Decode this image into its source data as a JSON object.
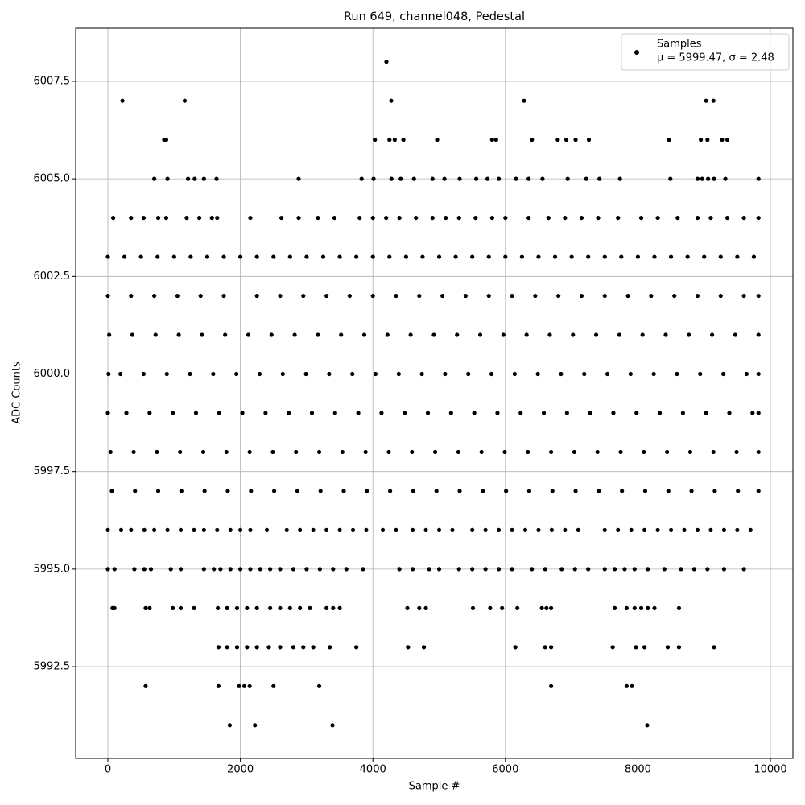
{
  "chart_data": {
    "type": "scatter",
    "title": "Run 649, channel048, Pedestal",
    "x_label": "Sample #",
    "y_label": "ADC Counts",
    "xlim": [
      -486,
      10340
    ],
    "ylim": [
      5990.15,
      6008.86
    ],
    "xticks": [
      0,
      2000,
      4000,
      6000,
      8000,
      10000
    ],
    "yticks": [
      5992.5,
      {
        "value": 5995,
        "label": "5995.0"
      },
      5997.5,
      {
        "value": 6000,
        "label": "6000.0"
      },
      6002.5,
      {
        "value": 6005,
        "label": "6005.0"
      },
      6007.5
    ],
    "grid": true,
    "legend": "upper right",
    "legend_note": "μ = 5999.47, σ = 2.48",
    "x": [
      4204,
      220,
      1160,
      4277,
      6282,
      9030,
      9140,
      850,
      880,
      4030,
      4250,
      4330,
      4460,
      4970,
      5800,
      5860,
      6400,
      6790,
      6920,
      7060,
      7260,
      8470,
      8950,
      9050,
      9270,
      9350,
      700,
      900,
      1210,
      1310,
      1450,
      1640,
      2880,
      3830,
      4010,
      4280,
      4420,
      4620,
      4900,
      5080,
      5310,
      5560,
      5730,
      5900,
      6160,
      6350,
      6560,
      6940,
      7220,
      7420,
      7730,
      8490,
      8900,
      8970,
      9060,
      9150,
      9320,
      9820,
      80,
      350,
      540,
      760,
      880,
      1190,
      1380,
      1570,
      1650,
      2150,
      2620,
      2880,
      3170,
      3420,
      3800,
      4000,
      4200,
      4400,
      4650,
      4900,
      5100,
      5300,
      5550,
      5800,
      6000,
      6350,
      6650,
      6900,
      7150,
      7400,
      7700,
      8050,
      8300,
      8600,
      8900,
      9100,
      9350,
      9600,
      9820,
      0,
      250,
      500,
      750,
      1000,
      1250,
      1500,
      1750,
      2000,
      2250,
      2500,
      2750,
      3000,
      3250,
      3500,
      3750,
      4000,
      4250,
      4500,
      4750,
      5000,
      5250,
      5500,
      5750,
      6000,
      6250,
      6500,
      6750,
      7000,
      7250,
      7500,
      7750,
      8000,
      8250,
      8500,
      8750,
      9000,
      9250,
      9500,
      9750,
      0,
      350,
      700,
      1050,
      1400,
      1750,
      2250,
      2600,
      2950,
      3300,
      3650,
      4000,
      4350,
      4700,
      5050,
      5400,
      5750,
      6100,
      6450,
      6800,
      7150,
      7500,
      7850,
      8200,
      8550,
      8900,
      9250,
      9600,
      9820,
      20,
      370,
      720,
      1070,
      1420,
      1770,
      2120,
      2470,
      2820,
      3170,
      3520,
      3870,
      4220,
      4570,
      4920,
      5270,
      5620,
      5970,
      6320,
      6670,
      7020,
      7370,
      7720,
      8070,
      8420,
      8770,
      9120,
      9470,
      9820,
      10,
      190,
      540,
      890,
      1240,
      1590,
      1940,
      2290,
      2640,
      2990,
      3340,
      3690,
      4040,
      4390,
      4740,
      5090,
      5440,
      5790,
      6140,
      6490,
      6840,
      7190,
      7540,
      7890,
      8240,
      8590,
      8940,
      9290,
      9640,
      9820,
      0,
      280,
      630,
      980,
      1330,
      1680,
      2030,
      2380,
      2730,
      3080,
      3430,
      3780,
      4130,
      4480,
      4830,
      5180,
      5530,
      5880,
      6230,
      6580,
      6930,
      7280,
      7630,
      7980,
      8330,
      8680,
      9030,
      9380,
      9730,
      9820,
      40,
      390,
      740,
      1090,
      1440,
      1790,
      2140,
      2490,
      2840,
      3190,
      3540,
      3890,
      4240,
      4590,
      4940,
      5290,
      5640,
      5990,
      6340,
      6690,
      7040,
      7390,
      7740,
      8090,
      8440,
      8790,
      9140,
      9490,
      9820,
      60,
      410,
      760,
      1110,
      1460,
      1810,
      2160,
      2510,
      2860,
      3210,
      3560,
      3910,
      4260,
      4610,
      4960,
      5310,
      5660,
      6010,
      6360,
      6710,
      7060,
      7410,
      7760,
      8110,
      8460,
      8810,
      9160,
      9510,
      9820,
      0,
      200,
      350,
      550,
      700,
      900,
      1100,
      1300,
      1450,
      1650,
      1850,
      2000,
      2150,
      2400,
      2700,
      2900,
      3100,
      3300,
      3500,
      3700,
      3900,
      4150,
      4350,
      4600,
      4800,
      5000,
      5200,
      5500,
      5700,
      5900,
      6100,
      6300,
      6500,
      6700,
      6900,
      7100,
      7500,
      7700,
      7900,
      8100,
      8300,
      8500,
      8700,
      8900,
      9100,
      9300,
      9500,
      9700,
      0,
      100,
      400,
      550,
      650,
      950,
      1100,
      1450,
      1600,
      1700,
      1850,
      2000,
      2150,
      2300,
      2450,
      2600,
      2800,
      3000,
      3200,
      3400,
      3600,
      3850,
      4400,
      4600,
      4850,
      5000,
      5300,
      5500,
      5700,
      5900,
      6100,
      6400,
      6600,
      6850,
      7050,
      7250,
      7500,
      7650,
      7800,
      7950,
      8150,
      8400,
      8650,
      8850,
      9050,
      9300,
      9600,
      70,
      100,
      570,
      630,
      980,
      1100,
      1300,
      1660,
      1800,
      1950,
      2100,
      2250,
      2450,
      2600,
      2750,
      2900,
      3050,
      3300,
      3400,
      3500,
      4520,
      4700,
      4800,
      5510,
      5770,
      5950,
      6180,
      6550,
      6620,
      6690,
      7650,
      7830,
      7950,
      8050,
      8150,
      8250,
      8620,
      1670,
      1800,
      1950,
      2100,
      2250,
      2430,
      2600,
      2800,
      2950,
      3100,
      3350,
      3750,
      4530,
      4770,
      6150,
      6600,
      6690,
      7620,
      7970,
      8100,
      8450,
      8620,
      9150,
      570,
      1670,
      1980,
      2060,
      2140,
      2500,
      3190,
      6690,
      7830,
      7910,
      1840,
      2220,
      3390,
      8140
    ],
    "series": [
      {
        "name": "Samples",
        "color": "#000000",
        "values": [
          6008,
          6007,
          6007,
          6007,
          6007,
          6007,
          6007,
          6006,
          6006,
          6006,
          6006,
          6006,
          6006,
          6006,
          6006,
          6006,
          6006,
          6006,
          6006,
          6006,
          6006,
          6006,
          6006,
          6006,
          6006,
          6006,
          6005,
          6005,
          6005,
          6005,
          6005,
          6005,
          6005,
          6005,
          6005,
          6005,
          6005,
          6005,
          6005,
          6005,
          6005,
          6005,
          6005,
          6005,
          6005,
          6005,
          6005,
          6005,
          6005,
          6005,
          6005,
          6005,
          6005,
          6005,
          6005,
          6005,
          6005,
          6005,
          6004,
          6004,
          6004,
          6004,
          6004,
          6004,
          6004,
          6004,
          6004,
          6004,
          6004,
          6004,
          6004,
          6004,
          6004,
          6004,
          6004,
          6004,
          6004,
          6004,
          6004,
          6004,
          6004,
          6004,
          6004,
          6004,
          6004,
          6004,
          6004,
          6004,
          6004,
          6004,
          6004,
          6004,
          6004,
          6004,
          6004,
          6004,
          6004,
          6003,
          6003,
          6003,
          6003,
          6003,
          6003,
          6003,
          6003,
          6003,
          6003,
          6003,
          6003,
          6003,
          6003,
          6003,
          6003,
          6003,
          6003,
          6003,
          6003,
          6003,
          6003,
          6003,
          6003,
          6003,
          6003,
          6003,
          6003,
          6003,
          6003,
          6003,
          6003,
          6003,
          6003,
          6003,
          6003,
          6003,
          6003,
          6003,
          6003,
          6002,
          6002,
          6002,
          6002,
          6002,
          6002,
          6002,
          6002,
          6002,
          6002,
          6002,
          6002,
          6002,
          6002,
          6002,
          6002,
          6002,
          6002,
          6002,
          6002,
          6002,
          6002,
          6002,
          6002,
          6002,
          6002,
          6002,
          6002,
          6002,
          6001,
          6001,
          6001,
          6001,
          6001,
          6001,
          6001,
          6001,
          6001,
          6001,
          6001,
          6001,
          6001,
          6001,
          6001,
          6001,
          6001,
          6001,
          6001,
          6001,
          6001,
          6001,
          6001,
          6001,
          6001,
          6001,
          6001,
          6001,
          6001,
          6000,
          6000,
          6000,
          6000,
          6000,
          6000,
          6000,
          6000,
          6000,
          6000,
          6000,
          6000,
          6000,
          6000,
          6000,
          6000,
          6000,
          6000,
          6000,
          6000,
          6000,
          6000,
          6000,
          6000,
          6000,
          6000,
          6000,
          6000,
          6000,
          6000,
          5999,
          5999,
          5999,
          5999,
          5999,
          5999,
          5999,
          5999,
          5999,
          5999,
          5999,
          5999,
          5999,
          5999,
          5999,
          5999,
          5999,
          5999,
          5999,
          5999,
          5999,
          5999,
          5999,
          5999,
          5999,
          5999,
          5999,
          5999,
          5999,
          5999,
          5998,
          5998,
          5998,
          5998,
          5998,
          5998,
          5998,
          5998,
          5998,
          5998,
          5998,
          5998,
          5998,
          5998,
          5998,
          5998,
          5998,
          5998,
          5998,
          5998,
          5998,
          5998,
          5998,
          5998,
          5998,
          5998,
          5998,
          5998,
          5998,
          5997,
          5997,
          5997,
          5997,
          5997,
          5997,
          5997,
          5997,
          5997,
          5997,
          5997,
          5997,
          5997,
          5997,
          5997,
          5997,
          5997,
          5997,
          5997,
          5997,
          5997,
          5997,
          5997,
          5997,
          5997,
          5997,
          5997,
          5997,
          5997,
          5996,
          5996,
          5996,
          5996,
          5996,
          5996,
          5996,
          5996,
          5996,
          5996,
          5996,
          5996,
          5996,
          5996,
          5996,
          5996,
          5996,
          5996,
          5996,
          5996,
          5996,
          5996,
          5996,
          5996,
          5996,
          5996,
          5996,
          5996,
          5996,
          5996,
          5996,
          5996,
          5996,
          5996,
          5996,
          5996,
          5996,
          5996,
          5996,
          5996,
          5996,
          5996,
          5996,
          5996,
          5996,
          5996,
          5996,
          5996,
          5995,
          5995,
          5995,
          5995,
          5995,
          5995,
          5995,
          5995,
          5995,
          5995,
          5995,
          5995,
          5995,
          5995,
          5995,
          5995,
          5995,
          5995,
          5995,
          5995,
          5995,
          5995,
          5995,
          5995,
          5995,
          5995,
          5995,
          5995,
          5995,
          5995,
          5995,
          5995,
          5995,
          5995,
          5995,
          5995,
          5995,
          5995,
          5995,
          5995,
          5995,
          5995,
          5995,
          5995,
          5995,
          5995,
          5995,
          5994,
          5994,
          5994,
          5994,
          5994,
          5994,
          5994,
          5994,
          5994,
          5994,
          5994,
          5994,
          5994,
          5994,
          5994,
          5994,
          5994,
          5994,
          5994,
          5994,
          5994,
          5994,
          5994,
          5994,
          5994,
          5994,
          5994,
          5994,
          5994,
          5994,
          5994,
          5994,
          5994,
          5994,
          5994,
          5994,
          5994,
          5993,
          5993,
          5993,
          5993,
          5993,
          5993,
          5993,
          5993,
          5993,
          5993,
          5993,
          5993,
          5993,
          5993,
          5993,
          5993,
          5993,
          5993,
          5993,
          5993,
          5993,
          5993,
          5993,
          5992,
          5992,
          5992,
          5992,
          5992,
          5992,
          5992,
          5992,
          5992,
          5992,
          5991,
          5991,
          5991,
          5991
        ]
      }
    ]
  }
}
